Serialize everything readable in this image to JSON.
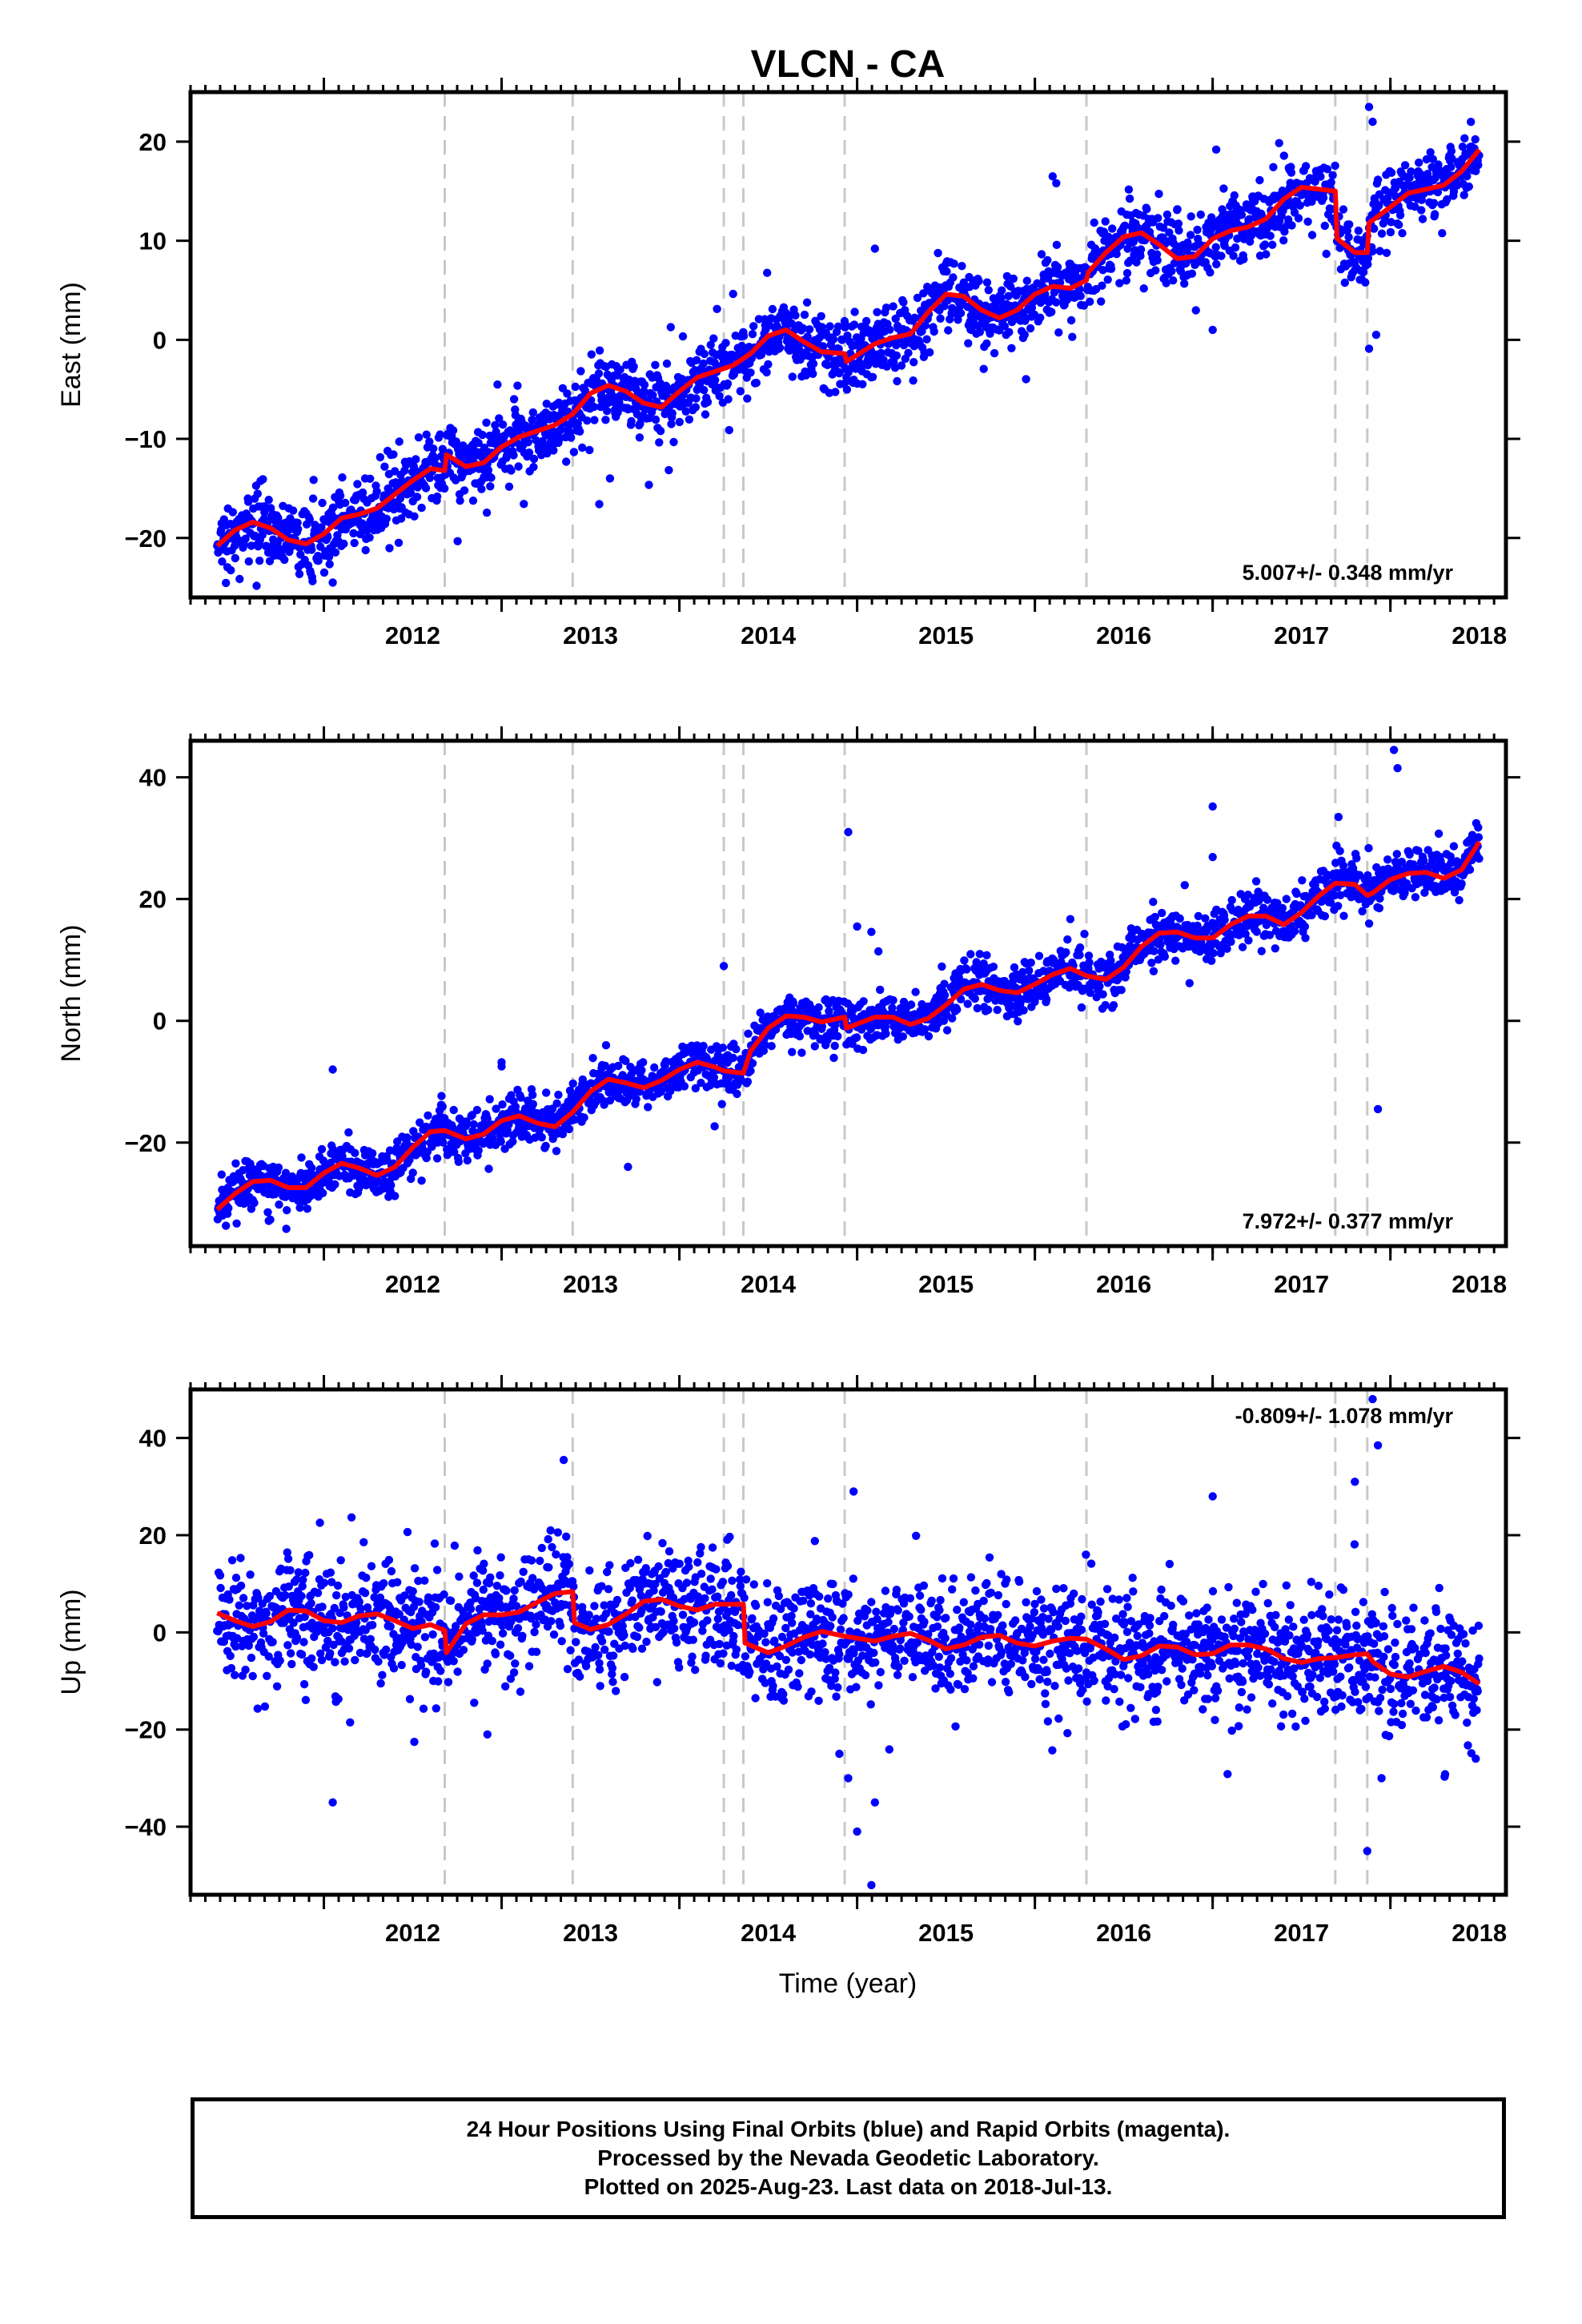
{
  "title": "VLCN - CA",
  "xlabel": "Time (year)",
  "colors": {
    "final_orbits": "#0000ff",
    "model_fit": "#ff0000",
    "event_lines": "#c8c8c8"
  },
  "footer": {
    "line1": "24 Hour Positions Using Final Orbits (blue) and Rapid Orbits (magenta).",
    "line2": "Processed by the Nevada Geodetic Laboratory.",
    "line3": "Plotted on 2025-Aug-23. Last data on 2018-Jul-13."
  },
  "chart_data": [
    {
      "type": "scatter",
      "name": "east",
      "ylabel": "East (mm)",
      "rate_label": "5.007+/- 0.348 mm/yr",
      "rate_placement": "bottom-right",
      "xlim": [
        2011.25,
        2018.65
      ],
      "ylim": [
        -26,
        25
      ],
      "xticks": [
        2012,
        2013,
        2014,
        2015,
        2016,
        2017,
        2018
      ],
      "yticks": [
        -20,
        -10,
        0,
        10,
        20
      ],
      "event_lines": [
        2012.68,
        2013.4,
        2014.25,
        2014.36,
        2014.93,
        2016.29,
        2017.69,
        2017.87
      ],
      "model": {
        "x": [
          2011.4,
          2011.5,
          2011.6,
          2011.7,
          2011.8,
          2011.9,
          2012.0,
          2012.1,
          2012.2,
          2012.3,
          2012.4,
          2012.5,
          2012.6,
          2012.68,
          2012.69,
          2012.8,
          2012.9,
          2013.0,
          2013.1,
          2013.2,
          2013.3,
          2013.4,
          2013.5,
          2013.6,
          2013.7,
          2013.8,
          2013.9,
          2014.0,
          2014.1,
          2014.2,
          2014.3,
          2014.4,
          2014.5,
          2014.6,
          2014.7,
          2014.8,
          2014.93,
          2014.94,
          2015.1,
          2015.2,
          2015.3,
          2015.4,
          2015.5,
          2015.6,
          2015.7,
          2015.8,
          2015.9,
          2016.0,
          2016.1,
          2016.2,
          2016.29,
          2016.3,
          2016.4,
          2016.5,
          2016.6,
          2016.7,
          2016.8,
          2016.9,
          2017.0,
          2017.1,
          2017.2,
          2017.3,
          2017.4,
          2017.5,
          2017.6,
          2017.69,
          2017.7,
          2017.8,
          2017.87,
          2017.88,
          2018.0,
          2018.1,
          2018.2,
          2018.3,
          2018.4,
          2018.5
        ],
        "y": [
          -20.8,
          -19.2,
          -18.4,
          -19.0,
          -20.2,
          -20.6,
          -19.6,
          -18.0,
          -17.6,
          -17.0,
          -15.6,
          -14.2,
          -13.0,
          -13.2,
          -11.6,
          -12.8,
          -12.4,
          -10.8,
          -9.8,
          -9.2,
          -8.6,
          -7.5,
          -5.4,
          -4.6,
          -5.2,
          -6.4,
          -6.8,
          -5.2,
          -3.8,
          -3.2,
          -2.6,
          -1.4,
          0.4,
          1.0,
          -0.2,
          -1.2,
          -1.4,
          -2.2,
          -0.4,
          0.2,
          0.6,
          2.8,
          4.6,
          4.4,
          3.0,
          2.2,
          3.0,
          4.6,
          5.4,
          5.2,
          6.0,
          6.8,
          8.8,
          10.4,
          10.8,
          9.6,
          8.2,
          8.4,
          10.2,
          11.0,
          11.4,
          12.2,
          14.2,
          15.4,
          15.2,
          15.0,
          10.2,
          8.8,
          8.8,
          11.8,
          13.4,
          14.8,
          15.2,
          15.6,
          17.0,
          19.2
        ]
      },
      "observations": {
        "description": "daily 24-hour positions",
        "trend_at_start": -20.8,
        "trend_at_end": 19.2,
        "scatter_sd": 1.8,
        "outliers": [
          [
            2016.1,
            16.5
          ],
          [
            2016.12,
            15.8
          ],
          [
            2016.8,
            13.1
          ],
          [
            2017.02,
            19.2
          ],
          [
            2017.88,
            23.5
          ],
          [
            2017.9,
            22.0
          ],
          [
            2017.88,
            -0.9
          ],
          [
            2017.92,
            0.5
          ],
          [
            2015.1,
            9.2
          ],
          [
            2012.05,
            -24.5
          ],
          [
            2017.0,
            1.0
          ]
        ]
      }
    },
    {
      "type": "scatter",
      "name": "north",
      "ylabel": "North (mm)",
      "rate_label": "7.972+/- 0.377 mm/yr",
      "rate_placement": "bottom-right",
      "xlim": [
        2011.25,
        2018.65
      ],
      "ylim": [
        -37,
        46
      ],
      "xticks": [
        2012,
        2013,
        2014,
        2015,
        2016,
        2017,
        2018
      ],
      "yticks": [
        -20,
        0,
        20,
        40
      ],
      "event_lines": [
        2012.68,
        2013.4,
        2014.25,
        2014.36,
        2014.93,
        2016.29,
        2017.69,
        2017.87
      ],
      "model": {
        "x": [
          2011.4,
          2011.5,
          2011.6,
          2011.7,
          2011.8,
          2011.9,
          2012.0,
          2012.1,
          2012.2,
          2012.3,
          2012.4,
          2012.5,
          2012.6,
          2012.68,
          2012.8,
          2012.9,
          2013.0,
          2013.1,
          2013.2,
          2013.3,
          2013.4,
          2013.5,
          2013.6,
          2013.7,
          2013.8,
          2013.9,
          2014.0,
          2014.1,
          2014.2,
          2014.25,
          2014.36,
          2014.4,
          2014.5,
          2014.6,
          2014.7,
          2014.8,
          2014.93,
          2014.94,
          2015.1,
          2015.2,
          2015.3,
          2015.4,
          2015.5,
          2015.6,
          2015.7,
          2015.8,
          2015.9,
          2016.0,
          2016.1,
          2016.2,
          2016.29,
          2016.4,
          2016.5,
          2016.6,
          2016.7,
          2016.8,
          2016.9,
          2017.0,
          2017.1,
          2017.2,
          2017.3,
          2017.4,
          2017.5,
          2017.6,
          2017.69,
          2017.8,
          2017.87,
          2017.9,
          2018.0,
          2018.1,
          2018.2,
          2018.3,
          2018.4,
          2018.5
        ],
        "y": [
          -31.0,
          -28.4,
          -26.4,
          -26.2,
          -27.4,
          -27.4,
          -25.0,
          -23.4,
          -24.2,
          -25.4,
          -24.0,
          -20.8,
          -18.2,
          -18.0,
          -19.4,
          -18.6,
          -16.4,
          -15.6,
          -16.8,
          -17.4,
          -15.0,
          -11.6,
          -9.6,
          -10.2,
          -11.0,
          -9.8,
          -8.0,
          -6.8,
          -7.6,
          -8.2,
          -8.6,
          -5.0,
          -1.2,
          0.8,
          0.6,
          -0.2,
          0.6,
          -1.2,
          0.6,
          0.6,
          -0.6,
          0.4,
          2.6,
          5.2,
          6.0,
          5.0,
          4.6,
          6.0,
          7.6,
          8.6,
          7.4,
          6.8,
          8.8,
          12.2,
          14.4,
          14.6,
          13.6,
          13.6,
          15.8,
          17.2,
          17.2,
          15.8,
          17.8,
          20.6,
          22.6,
          22.4,
          20.6,
          21.0,
          23.2,
          24.2,
          24.4,
          23.4,
          24.8,
          29.4
        ]
      },
      "observations": {
        "description": "daily 24-hour positions",
        "trend_at_start": -31.0,
        "trend_at_end": 29.4,
        "scatter_sd": 2.0,
        "outliers": [
          [
            2012.05,
            -8.0
          ],
          [
            2013.0,
            -6.8
          ],
          [
            2014.25,
            9.0
          ],
          [
            2014.95,
            31.0
          ],
          [
            2015.0,
            15.5
          ],
          [
            2015.08,
            14.6
          ],
          [
            2015.12,
            11.4
          ],
          [
            2017.0,
            35.2
          ],
          [
            2017.0,
            26.9
          ],
          [
            2018.02,
            44.5
          ],
          [
            2018.04,
            41.5
          ],
          [
            2017.93,
            -14.5
          ],
          [
            2013.0,
            -7.5
          ]
        ]
      }
    },
    {
      "type": "scatter",
      "name": "up",
      "ylabel": "Up (mm)",
      "rate_label": "-0.809+/- 1.078 mm/yr",
      "rate_placement": "top-right",
      "xlim": [
        2011.25,
        2018.65
      ],
      "ylim": [
        -54,
        50
      ],
      "xticks": [
        2012,
        2013,
        2014,
        2015,
        2016,
        2017,
        2018
      ],
      "yticks": [
        -40,
        -20,
        0,
        20,
        40
      ],
      "event_lines": [
        2012.68,
        2013.4,
        2014.25,
        2014.36,
        2014.93,
        2016.29,
        2017.69,
        2017.87
      ],
      "model": {
        "x": [
          2011.4,
          2011.5,
          2011.6,
          2011.7,
          2011.8,
          2011.9,
          2012.0,
          2012.1,
          2012.2,
          2012.3,
          2012.4,
          2012.5,
          2012.6,
          2012.68,
          2012.69,
          2012.8,
          2012.9,
          2013.0,
          2013.1,
          2013.2,
          2013.3,
          2013.4,
          2013.41,
          2013.5,
          2013.6,
          2013.7,
          2013.8,
          2013.9,
          2014.0,
          2014.1,
          2014.2,
          2014.36,
          2014.37,
          2014.5,
          2014.6,
          2014.7,
          2014.8,
          2014.93,
          2015.1,
          2015.2,
          2015.3,
          2015.4,
          2015.5,
          2015.6,
          2015.7,
          2015.8,
          2015.9,
          2016.0,
          2016.1,
          2016.2,
          2016.29,
          2016.4,
          2016.5,
          2016.6,
          2016.7,
          2016.8,
          2016.9,
          2017.0,
          2017.1,
          2017.2,
          2017.3,
          2017.4,
          2017.5,
          2017.6,
          2017.69,
          2017.8,
          2017.87,
          2017.9,
          2018.0,
          2018.1,
          2018.2,
          2018.3,
          2018.4,
          2018.5
        ],
        "y": [
          4.0,
          2.4,
          1.2,
          2.2,
          4.6,
          4.4,
          2.4,
          2.0,
          3.4,
          3.8,
          2.4,
          0.8,
          1.6,
          0.4,
          -4.2,
          1.8,
          3.6,
          3.6,
          4.2,
          6.2,
          8.0,
          8.4,
          2.0,
          0.6,
          1.6,
          3.8,
          6.4,
          6.8,
          5.4,
          4.6,
          5.8,
          5.8,
          -2.2,
          -4.2,
          -2.8,
          -1.0,
          0.2,
          -0.8,
          -1.8,
          -0.8,
          -0.2,
          -1.6,
          -3.4,
          -2.6,
          -1.0,
          -0.6,
          -2.2,
          -2.8,
          -1.8,
          -1.2,
          -1.4,
          -3.4,
          -5.6,
          -4.8,
          -2.8,
          -3.0,
          -4.6,
          -4.4,
          -2.6,
          -2.6,
          -3.4,
          -5.4,
          -6.2,
          -5.4,
          -5.2,
          -4.6,
          -4.4,
          -6.0,
          -8.6,
          -9.2,
          -8.0,
          -7.0,
          -8.2,
          -10.6
        ]
      },
      "observations": {
        "description": "daily 24-hour positions",
        "trend_at_start": 4.0,
        "trend_at_end": -10.6,
        "scatter_sd": 6.0,
        "outliers": [
          [
            2012.05,
            -35.0
          ],
          [
            2012.92,
            -21.0
          ],
          [
            2014.9,
            -25.0
          ],
          [
            2014.95,
            -30.0
          ],
          [
            2014.98,
            29.0
          ],
          [
            2015.0,
            -41.0
          ],
          [
            2015.08,
            -52.0
          ],
          [
            2015.1,
            -35.0
          ],
          [
            2017.0,
            28.0
          ],
          [
            2017.87,
            -45.0
          ],
          [
            2017.9,
            48.0
          ],
          [
            2017.93,
            38.5
          ],
          [
            2017.95,
            -30.0
          ],
          [
            2017.8,
            31.0
          ],
          [
            2018.48,
            -26.0
          ]
        ]
      }
    }
  ]
}
